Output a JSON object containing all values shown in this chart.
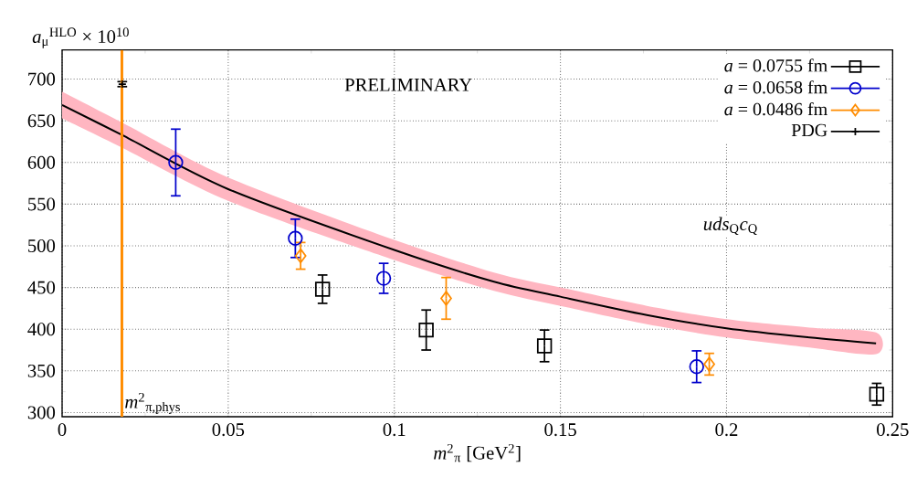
{
  "chart_data": {
    "type": "scatter",
    "xlabel": "*m*$^{2}$$_{π}$ [GeV$^{2}$]",
    "ylabel": "*a*$_{μ}$$^{HLO}$ × 10$^{10}$",
    "xlim": [
      0,
      0.25
    ],
    "ylim": [
      295,
      735
    ],
    "xticks": [
      0,
      0.05,
      0.1,
      0.15,
      0.2,
      0.25
    ],
    "yticks": [
      300,
      350,
      400,
      450,
      500,
      550,
      600,
      650,
      700
    ],
    "grid": true,
    "legend": "top right",
    "annotations": [
      "PRELIMINARY",
      "*uds*$_{Q}$*c*$_{Q}$"
    ],
    "ref_lines": [
      {
        "axis": "x",
        "value": 0.018,
        "label": "*m*$^{2}$$_{π,phys}$",
        "color": "#ff8c00"
      }
    ],
    "series": [
      {
        "type": "line",
        "color": "#000000",
        "marker": "none",
        "x": [
          0,
          0.018,
          0.05,
          0.1,
          0.13,
          0.15,
          0.176,
          0.2,
          0.225,
          0.245
        ],
        "values": [
          669,
          633,
          568,
          495,
          457,
          439,
          417,
          401,
          390,
          383
        ],
        "lower": [
          653,
          618,
          554,
          483,
          446,
          428,
          406,
          390,
          378,
          370
        ],
        "upper": [
          685,
          648,
          582,
          507,
          468,
          450,
          428,
          412,
          402,
          396
        ]
      },
      {
        "name": "*a* = 0.0755 fm",
        "color": "#000000",
        "marker": "square",
        "x": [
          0.0784,
          0.1096,
          0.1452,
          0.2452
        ],
        "values": [
          448,
          399,
          380,
          322
        ],
        "errors": [
          17,
          24,
          19,
          13
        ]
      },
      {
        "name": "*a* = 0.0658 fm",
        "color": "#0000cc",
        "marker": "circle",
        "x": [
          0.0342,
          0.0702,
          0.0968,
          0.191
        ],
        "values": [
          600,
          509,
          461,
          355
        ],
        "errors": [
          40,
          23,
          18,
          19
        ]
      },
      {
        "name": "*a* = 0.0486 fm",
        "color": "#ff8c00",
        "marker": "diamond",
        "x": [
          0.0718,
          0.1156,
          0.1948
        ],
        "values": [
          488,
          437,
          358
        ],
        "errors": [
          16,
          25,
          13
        ]
      },
      {
        "name": "PDG",
        "color": "#000000",
        "marker": "cross",
        "x": [
          0.0181
        ],
        "values": [
          694
        ],
        "errors": [
          3
        ]
      }
    ]
  }
}
